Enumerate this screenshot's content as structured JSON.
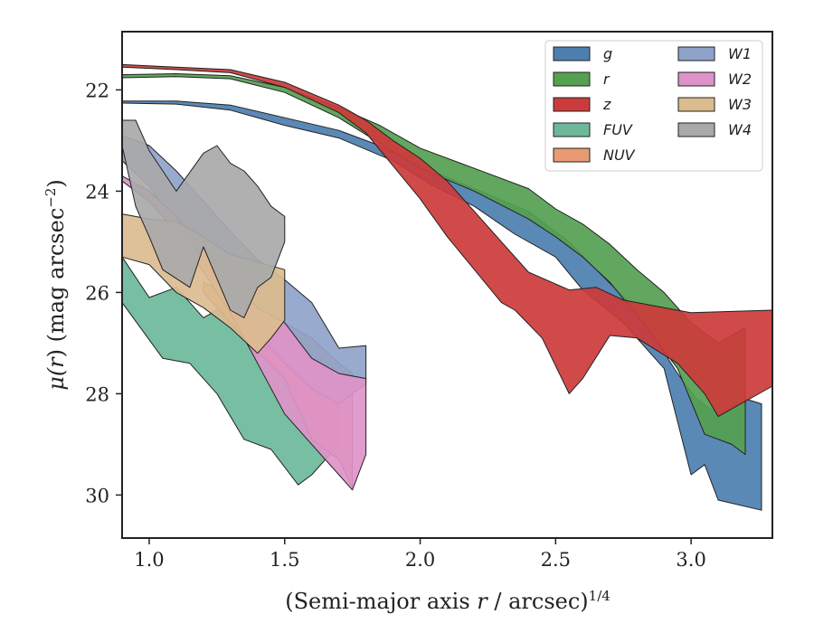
{
  "chart_data": {
    "type": "area",
    "xlabel_main": "(Semi-major axis ",
    "xlabel_var": "r",
    "xlabel_tail": " / arcsec)",
    "xlabel_sup": "1/4",
    "ylabel_mu": "μ(",
    "ylabel_var": "r",
    "ylabel_tail": ") (mag arcsec",
    "ylabel_sup": "−2",
    "ylabel_close": ")",
    "xlim": [
      0.9,
      3.3
    ],
    "ylim": [
      30.85,
      20.85
    ],
    "y_inverted": true,
    "xticks": [
      1.0,
      1.5,
      2.0,
      2.5,
      3.0
    ],
    "xtick_labels": [
      "1.0",
      "1.5",
      "2.0",
      "2.5",
      "3.0"
    ],
    "yticks": [
      22,
      24,
      26,
      28,
      30
    ],
    "ytick_labels": [
      "22",
      "24",
      "26",
      "28",
      "30"
    ],
    "legend_position": "top-right",
    "legend_columns": 2,
    "series": [
      {
        "name": "g",
        "color": "#4c7fb0",
        "upper": [
          [
            0.9,
            22.22
          ],
          [
            1.1,
            22.22
          ],
          [
            1.3,
            22.3
          ],
          [
            1.5,
            22.55
          ],
          [
            1.7,
            22.8
          ],
          [
            1.85,
            23.1
          ],
          [
            2.0,
            23.5
          ],
          [
            2.2,
            23.95
          ],
          [
            2.4,
            24.4
          ],
          [
            2.55,
            25.0
          ],
          [
            2.65,
            25.55
          ],
          [
            2.8,
            26.35
          ],
          [
            2.95,
            27.6
          ],
          [
            3.02,
            28.1
          ],
          [
            3.1,
            28.4
          ],
          [
            3.2,
            28.1
          ],
          [
            3.26,
            28.2
          ]
        ],
        "lower": [
          [
            3.26,
            30.3
          ],
          [
            3.1,
            30.1
          ],
          [
            3.05,
            29.4
          ],
          [
            3.0,
            29.6
          ],
          [
            2.9,
            27.5
          ],
          [
            2.75,
            26.6
          ],
          [
            2.6,
            25.95
          ],
          [
            2.5,
            25.3
          ],
          [
            2.35,
            24.85
          ],
          [
            2.2,
            24.3
          ],
          [
            2.05,
            23.9
          ],
          [
            1.9,
            23.4
          ],
          [
            1.7,
            22.95
          ],
          [
            1.5,
            22.7
          ],
          [
            1.3,
            22.4
          ],
          [
            1.1,
            22.28
          ],
          [
            0.9,
            22.26
          ]
        ]
      },
      {
        "name": "r",
        "color": "#55a051",
        "upper": [
          [
            0.9,
            21.7
          ],
          [
            1.1,
            21.68
          ],
          [
            1.3,
            21.72
          ],
          [
            1.5,
            21.95
          ],
          [
            1.7,
            22.35
          ],
          [
            1.85,
            22.7
          ],
          [
            2.0,
            23.15
          ],
          [
            2.2,
            23.55
          ],
          [
            2.4,
            23.95
          ],
          [
            2.5,
            24.35
          ],
          [
            2.6,
            24.65
          ],
          [
            2.7,
            25.05
          ],
          [
            2.8,
            25.55
          ],
          [
            2.9,
            26.0
          ],
          [
            3.0,
            26.6
          ],
          [
            3.1,
            27.0
          ],
          [
            3.2,
            26.7
          ]
        ],
        "lower": [
          [
            3.2,
            29.2
          ],
          [
            3.15,
            29.0
          ],
          [
            3.05,
            28.8
          ],
          [
            2.95,
            27.5
          ],
          [
            2.8,
            26.45
          ],
          [
            2.7,
            25.8
          ],
          [
            2.6,
            25.3
          ],
          [
            2.5,
            24.9
          ],
          [
            2.4,
            24.55
          ],
          [
            2.2,
            24.0
          ],
          [
            2.0,
            23.55
          ],
          [
            1.85,
            23.05
          ],
          [
            1.7,
            22.55
          ],
          [
            1.5,
            22.05
          ],
          [
            1.3,
            21.78
          ],
          [
            1.1,
            21.74
          ],
          [
            0.9,
            21.76
          ]
        ]
      },
      {
        "name": "z",
        "color": "#cc3b3b",
        "upper": [
          [
            0.9,
            21.5
          ],
          [
            1.1,
            21.55
          ],
          [
            1.3,
            21.6
          ],
          [
            1.5,
            21.85
          ],
          [
            1.7,
            22.3
          ],
          [
            1.8,
            22.6
          ],
          [
            1.9,
            23.0
          ],
          [
            2.0,
            23.35
          ],
          [
            2.1,
            23.8
          ],
          [
            2.2,
            24.4
          ],
          [
            2.3,
            25.0
          ],
          [
            2.4,
            25.6
          ],
          [
            2.55,
            25.95
          ],
          [
            2.65,
            25.9
          ],
          [
            2.75,
            26.15
          ],
          [
            2.9,
            26.3
          ],
          [
            3.0,
            26.4
          ],
          [
            3.3,
            26.35
          ]
        ],
        "lower": [
          [
            3.3,
            27.85
          ],
          [
            3.1,
            28.45
          ],
          [
            3.05,
            28.0
          ],
          [
            2.95,
            27.4
          ],
          [
            2.8,
            26.9
          ],
          [
            2.7,
            26.85
          ],
          [
            2.6,
            27.7
          ],
          [
            2.55,
            28.0
          ],
          [
            2.45,
            26.9
          ],
          [
            2.35,
            26.35
          ],
          [
            2.3,
            26.2
          ],
          [
            2.2,
            25.55
          ],
          [
            2.1,
            24.9
          ],
          [
            2.0,
            24.15
          ],
          [
            1.9,
            23.5
          ],
          [
            1.8,
            22.85
          ],
          [
            1.7,
            22.45
          ],
          [
            1.5,
            21.95
          ],
          [
            1.3,
            21.66
          ],
          [
            1.1,
            21.6
          ],
          [
            0.9,
            21.55
          ]
        ]
      },
      {
        "name": "FUV",
        "color": "#6db89a",
        "upper": [
          [
            0.9,
            25.3
          ],
          [
            1.0,
            26.1
          ],
          [
            1.1,
            25.9
          ],
          [
            1.2,
            26.5
          ],
          [
            1.3,
            26.2
          ],
          [
            1.4,
            27.0
          ],
          [
            1.5,
            27.1
          ],
          [
            1.6,
            27.5
          ],
          [
            1.7,
            27.7
          ]
        ],
        "lower": [
          [
            1.7,
            29.0
          ],
          [
            1.6,
            29.6
          ],
          [
            1.55,
            29.8
          ],
          [
            1.45,
            29.1
          ],
          [
            1.35,
            28.9
          ],
          [
            1.25,
            28.0
          ],
          [
            1.15,
            27.4
          ],
          [
            1.05,
            27.3
          ],
          [
            0.9,
            26.2
          ]
        ]
      },
      {
        "name": "NUV",
        "color": "#e89a72",
        "upper": [
          [
            1.2,
            25.8
          ],
          [
            1.35,
            26.2
          ],
          [
            1.5,
            26.6
          ],
          [
            1.6,
            26.9
          ],
          [
            1.7,
            27.4
          ],
          [
            1.75,
            27.6
          ]
        ],
        "lower": [
          [
            1.75,
            29.85
          ],
          [
            1.7,
            29.3
          ],
          [
            1.6,
            28.9
          ],
          [
            1.5,
            27.7
          ],
          [
            1.35,
            26.9
          ],
          [
            1.2,
            26.0
          ]
        ]
      },
      {
        "name": "W1",
        "color": "#8fa3c9",
        "upper": [
          [
            0.9,
            22.9
          ],
          [
            1.0,
            23.1
          ],
          [
            1.1,
            23.6
          ],
          [
            1.2,
            24.2
          ],
          [
            1.3,
            24.8
          ],
          [
            1.4,
            25.35
          ],
          [
            1.5,
            25.75
          ],
          [
            1.6,
            26.2
          ],
          [
            1.7,
            27.1
          ],
          [
            1.8,
            27.05
          ]
        ],
        "lower": [
          [
            1.8,
            27.8
          ],
          [
            1.7,
            28.2
          ],
          [
            1.6,
            27.9
          ],
          [
            1.5,
            27.4
          ],
          [
            1.4,
            26.8
          ],
          [
            1.3,
            26.1
          ],
          [
            1.2,
            25.4
          ],
          [
            1.1,
            24.7
          ],
          [
            1.0,
            23.9
          ],
          [
            0.9,
            23.4
          ]
        ]
      },
      {
        "name": "W2",
        "color": "#de93c9",
        "upper": [
          [
            0.9,
            23.7
          ],
          [
            1.0,
            24.0
          ],
          [
            1.1,
            24.5
          ],
          [
            1.2,
            25.1
          ],
          [
            1.3,
            25.7
          ],
          [
            1.4,
            26.3
          ],
          [
            1.5,
            26.6
          ],
          [
            1.6,
            27.3
          ],
          [
            1.7,
            27.6
          ],
          [
            1.8,
            27.7
          ]
        ],
        "lower": [
          [
            1.8,
            29.2
          ],
          [
            1.75,
            29.9
          ],
          [
            1.7,
            29.6
          ],
          [
            1.6,
            29.0
          ],
          [
            1.5,
            28.4
          ],
          [
            1.4,
            27.4
          ],
          [
            1.3,
            26.4
          ],
          [
            1.2,
            25.6
          ],
          [
            1.1,
            24.8
          ],
          [
            1.0,
            24.2
          ],
          [
            0.9,
            23.8
          ]
        ]
      },
      {
        "name": "W3",
        "color": "#dbbc8f",
        "upper": [
          [
            0.9,
            24.45
          ],
          [
            1.0,
            24.55
          ],
          [
            1.1,
            24.6
          ],
          [
            1.2,
            24.9
          ],
          [
            1.3,
            25.25
          ],
          [
            1.4,
            25.4
          ],
          [
            1.5,
            25.55
          ]
        ],
        "lower": [
          [
            1.5,
            26.55
          ],
          [
            1.45,
            26.9
          ],
          [
            1.4,
            27.2
          ],
          [
            1.3,
            26.7
          ],
          [
            1.2,
            26.3
          ],
          [
            1.1,
            26.0
          ],
          [
            1.0,
            25.45
          ],
          [
            0.9,
            25.3
          ]
        ]
      },
      {
        "name": "W4",
        "color": "#a9a9a9",
        "upper": [
          [
            0.9,
            22.6
          ],
          [
            0.95,
            22.6
          ],
          [
            1.0,
            23.2
          ],
          [
            1.1,
            24.0
          ],
          [
            1.2,
            23.25
          ],
          [
            1.25,
            23.1
          ],
          [
            1.3,
            23.45
          ],
          [
            1.35,
            23.6
          ],
          [
            1.4,
            23.9
          ],
          [
            1.45,
            24.3
          ],
          [
            1.5,
            24.5
          ]
        ],
        "lower": [
          [
            1.5,
            25.0
          ],
          [
            1.45,
            25.7
          ],
          [
            1.4,
            25.9
          ],
          [
            1.35,
            26.5
          ],
          [
            1.3,
            26.35
          ],
          [
            1.2,
            25.1
          ],
          [
            1.15,
            25.9
          ],
          [
            1.05,
            25.55
          ],
          [
            1.0,
            24.9
          ],
          [
            0.95,
            24.3
          ],
          [
            0.9,
            23.1
          ]
        ]
      }
    ]
  }
}
